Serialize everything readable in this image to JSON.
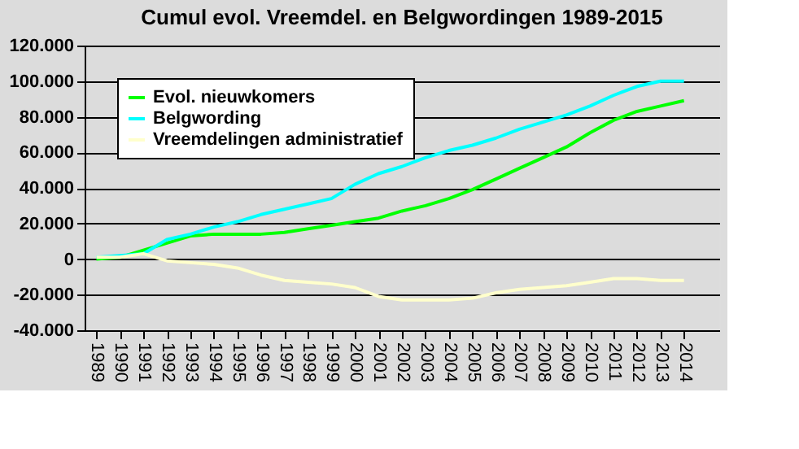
{
  "chart_data": {
    "type": "line",
    "title": "Cumul evol. Vreemdel. en Belgwordingen 1989-2015",
    "categories": [
      "1989",
      "1990",
      "1991",
      "1992",
      "1993",
      "1994",
      "1995",
      "1996",
      "1997",
      "1998",
      "1999",
      "2000",
      "2001",
      "2002",
      "2003",
      "2004",
      "2005",
      "2006",
      "2007",
      "2008",
      "2009",
      "2010",
      "2011",
      "2012",
      "2013",
      "2014"
    ],
    "series": [
      {
        "name": "Evol. nieuwkomers",
        "color": "#00ff00",
        "values": [
          0,
          1000,
          5000,
          9000,
          13000,
          14000,
          14000,
          14000,
          15000,
          17000,
          19000,
          21000,
          23000,
          27000,
          30000,
          34000,
          39000,
          45000,
          51000,
          57000,
          63000,
          71000,
          78000,
          83000,
          86000,
          89000
        ]
      },
      {
        "name": "Belgwording",
        "color": "#00ffff",
        "values": [
          1000,
          2000,
          3000,
          11000,
          14000,
          18000,
          21000,
          25000,
          28000,
          31000,
          34000,
          42000,
          48000,
          52000,
          57000,
          61000,
          64000,
          68000,
          73000,
          77000,
          81000,
          86000,
          92000,
          97000,
          100000,
          100000
        ]
      },
      {
        "name": "Vreemdelingen administratief",
        "color": "#ffffcc",
        "values": [
          1000,
          1000,
          3000,
          -1000,
          -2000,
          -3000,
          -5000,
          -9000,
          -12000,
          -13000,
          -14000,
          -16000,
          -21000,
          -23000,
          -23000,
          -23000,
          -22000,
          -19000,
          -17000,
          -16000,
          -15000,
          -13000,
          -11000,
          -11000,
          -12000,
          -12000
        ]
      }
    ],
    "ylim": [
      -40000,
      120000
    ],
    "yticks": [
      {
        "value": -40000,
        "label": "-40.000"
      },
      {
        "value": -20000,
        "label": "-20.000"
      },
      {
        "value": 0,
        "label": "0"
      },
      {
        "value": 20000,
        "label": "20.000"
      },
      {
        "value": 40000,
        "label": "40.000"
      },
      {
        "value": 60000,
        "label": "60.000"
      },
      {
        "value": 80000,
        "label": "80.000"
      },
      {
        "value": 100000,
        "label": "100.000"
      },
      {
        "value": 120000,
        "label": "120.000"
      }
    ],
    "grid": "y",
    "legend": "top left",
    "marker": "none",
    "line_style": "solid"
  }
}
